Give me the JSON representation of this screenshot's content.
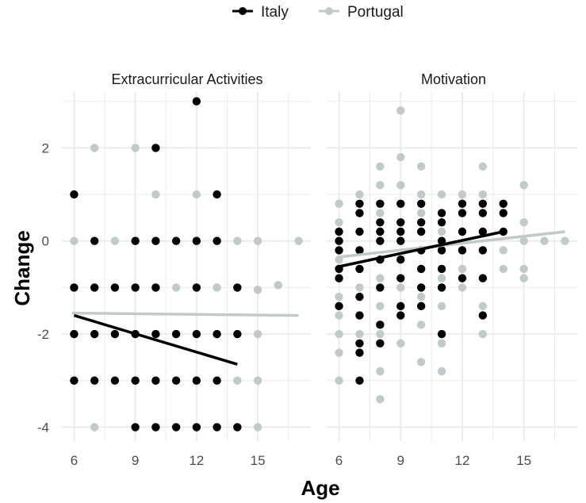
{
  "colors": {
    "italy": "#000000",
    "portugal": "#c2c9c9",
    "grid": "#ebebeb"
  },
  "chart_data": {
    "type": "scatter",
    "xlabel": "Age",
    "ylabel": "Change",
    "xlim": [
      5.4,
      17.6
    ],
    "ylim": [
      -4.3,
      3.2
    ],
    "xticks": [
      6,
      9,
      12,
      15
    ],
    "yticks": [
      -4,
      -2,
      0,
      2
    ],
    "legend": {
      "position": "top",
      "entries": [
        "Italy",
        "Portugal"
      ]
    },
    "panels": [
      {
        "title": "Extracurricular Activities",
        "series": [
          {
            "name": "Portugal",
            "points": [
              [
                6,
                0
              ],
              [
                6,
                -1
              ],
              [
                6,
                -2
              ],
              [
                6,
                -3
              ],
              [
                7,
                2
              ],
              [
                7,
                -1
              ],
              [
                7,
                -2
              ],
              [
                7,
                -3
              ],
              [
                7,
                -4
              ],
              [
                8,
                0
              ],
              [
                8,
                -1
              ],
              [
                8,
                -2
              ],
              [
                8,
                -3
              ],
              [
                9,
                2
              ],
              [
                9,
                0
              ],
              [
                9,
                -1
              ],
              [
                9,
                -2
              ],
              [
                9,
                -3
              ],
              [
                10,
                1
              ],
              [
                10,
                0
              ],
              [
                10,
                -1
              ],
              [
                10,
                -2
              ],
              [
                10,
                -3
              ],
              [
                10,
                -4
              ],
              [
                11,
                0
              ],
              [
                11,
                -1
              ],
              [
                11,
                -2
              ],
              [
                11,
                -3
              ],
              [
                12,
                1
              ],
              [
                12,
                0
              ],
              [
                12,
                -1
              ],
              [
                12,
                -2
              ],
              [
                12,
                -3
              ],
              [
                12,
                -4
              ],
              [
                13,
                0
              ],
              [
                13,
                -1
              ],
              [
                13,
                -2
              ],
              [
                13,
                -3
              ],
              [
                14,
                0
              ],
              [
                14,
                -1
              ],
              [
                14,
                -3
              ],
              [
                14,
                -4
              ],
              [
                15,
                0
              ],
              [
                15,
                -1.05
              ],
              [
                15,
                -2
              ],
              [
                15,
                -3
              ],
              [
                15,
                -4
              ],
              [
                16,
                -0.95
              ],
              [
                17,
                0
              ]
            ],
            "fit": {
              "x": [
                5.9,
                17
              ],
              "y": [
                -1.55,
                -1.6
              ]
            }
          },
          {
            "name": "Italy",
            "points": [
              [
                6,
                1
              ],
              [
                6,
                -1
              ],
              [
                6,
                -2
              ],
              [
                6,
                -3
              ],
              [
                7,
                0
              ],
              [
                7,
                -1
              ],
              [
                7,
                -2
              ],
              [
                7,
                -3
              ],
              [
                8,
                -1
              ],
              [
                8,
                -2
              ],
              [
                8,
                -3
              ],
              [
                9,
                0
              ],
              [
                9,
                -1
              ],
              [
                9,
                -2
              ],
              [
                9,
                -3
              ],
              [
                9,
                -4
              ],
              [
                10,
                2
              ],
              [
                10,
                0
              ],
              [
                10,
                -1
              ],
              [
                10,
                -2
              ],
              [
                10,
                -3
              ],
              [
                10,
                -4
              ],
              [
                11,
                0
              ],
              [
                11,
                -2
              ],
              [
                11,
                -3
              ],
              [
                11,
                -4
              ],
              [
                12,
                3
              ],
              [
                12,
                0
              ],
              [
                12,
                -1
              ],
              [
                12,
                -2
              ],
              [
                12,
                -3
              ],
              [
                12,
                -4
              ],
              [
                13,
                1
              ],
              [
                13,
                0
              ],
              [
                13,
                -2
              ],
              [
                13,
                -3
              ],
              [
                13,
                -4
              ],
              [
                14,
                -1
              ],
              [
                14,
                -2
              ],
              [
                14,
                -4
              ]
            ],
            "fit": {
              "x": [
                6,
                14
              ],
              "y": [
                -1.6,
                -2.65
              ]
            }
          }
        ]
      },
      {
        "title": "Motivation",
        "series": [
          {
            "name": "Portugal",
            "points": [
              [
                6,
                0.8
              ],
              [
                6,
                0.4
              ],
              [
                6,
                0.2
              ],
              [
                6,
                0
              ],
              [
                6,
                -0.4
              ],
              [
                6,
                -0.8
              ],
              [
                6,
                -1.2
              ],
              [
                6,
                -1.6
              ],
              [
                6,
                -2
              ],
              [
                6,
                -2.4
              ],
              [
                6,
                -3
              ],
              [
                7,
                1
              ],
              [
                7,
                0.6
              ],
              [
                7,
                0.2
              ],
              [
                7,
                -0.2
              ],
              [
                7,
                -0.6
              ],
              [
                7,
                -1
              ],
              [
                7,
                -1.6
              ],
              [
                7,
                -2
              ],
              [
                8,
                1.6
              ],
              [
                8,
                1.2
              ],
              [
                8,
                0.6
              ],
              [
                8,
                0.2
              ],
              [
                8,
                -0.4
              ],
              [
                8,
                -0.8
              ],
              [
                8,
                -1.4
              ],
              [
                8,
                -2
              ],
              [
                8,
                -2.8
              ],
              [
                8,
                -3.4
              ],
              [
                9,
                2.8
              ],
              [
                9,
                1.8
              ],
              [
                9,
                1.2
              ],
              [
                9,
                0.8
              ],
              [
                9,
                0.4
              ],
              [
                9,
                0
              ],
              [
                9,
                -0.4
              ],
              [
                9,
                -1
              ],
              [
                9,
                -1.6
              ],
              [
                9,
                -2.2
              ],
              [
                10,
                1.6
              ],
              [
                10,
                1
              ],
              [
                10,
                0.6
              ],
              [
                10,
                0.2
              ],
              [
                10,
                -0.2
              ],
              [
                10,
                -0.6
              ],
              [
                10,
                -1.2
              ],
              [
                10,
                -1.8
              ],
              [
                10,
                -2.6
              ],
              [
                11,
                1
              ],
              [
                11,
                0.6
              ],
              [
                11,
                0.2
              ],
              [
                11,
                -0.2
              ],
              [
                11,
                -0.8
              ],
              [
                11,
                -1.4
              ],
              [
                11,
                -2.2
              ],
              [
                11,
                -2.8
              ],
              [
                12,
                1
              ],
              [
                12,
                0.6
              ],
              [
                12,
                0.2
              ],
              [
                12,
                -0.2
              ],
              [
                12,
                -0.6
              ],
              [
                12,
                -1
              ],
              [
                13,
                1.6
              ],
              [
                13,
                1
              ],
              [
                13,
                0.6
              ],
              [
                13,
                0.2
              ],
              [
                13,
                -0.2
              ],
              [
                13,
                -0.8
              ],
              [
                13,
                -1.4
              ],
              [
                13,
                -2
              ],
              [
                14,
                0.6
              ],
              [
                14,
                0.2
              ],
              [
                14,
                -0.2
              ],
              [
                14,
                -0.6
              ],
              [
                15,
                1.2
              ],
              [
                15,
                0.4
              ],
              [
                15,
                0
              ],
              [
                15,
                -0.6
              ],
              [
                15,
                -0.8
              ],
              [
                16,
                0
              ],
              [
                17,
                0
              ]
            ],
            "fit": {
              "x": [
                5.9,
                17
              ],
              "y": [
                -0.35,
                0.2
              ]
            }
          },
          {
            "name": "Italy",
            "points": [
              [
                6,
                0.2
              ],
              [
                6,
                0
              ],
              [
                6,
                -0.2
              ],
              [
                6,
                -0.6
              ],
              [
                6,
                -0.8
              ],
              [
                6,
                -1.4
              ],
              [
                7,
                0.8
              ],
              [
                7,
                0.6
              ],
              [
                7,
                0.2
              ],
              [
                7,
                -0.2
              ],
              [
                7,
                -0.6
              ],
              [
                7,
                -1.2
              ],
              [
                7,
                -1.6
              ],
              [
                7,
                -2.2
              ],
              [
                7,
                -2.4
              ],
              [
                7,
                -3
              ],
              [
                8,
                0.8
              ],
              [
                8,
                0.4
              ],
              [
                8,
                0.2
              ],
              [
                8,
                0
              ],
              [
                8,
                -0.4
              ],
              [
                8,
                -1
              ],
              [
                8,
                -1.8
              ],
              [
                8,
                -2.2
              ],
              [
                9,
                0.8
              ],
              [
                9,
                0.4
              ],
              [
                9,
                0.2
              ],
              [
                9,
                0
              ],
              [
                9,
                -0.4
              ],
              [
                9,
                -0.8
              ],
              [
                9,
                -1.4
              ],
              [
                9,
                -1.6
              ],
              [
                10,
                0.8
              ],
              [
                10,
                0.4
              ],
              [
                10,
                0.2
              ],
              [
                10,
                -0.2
              ],
              [
                10,
                -0.6
              ],
              [
                10,
                -1
              ],
              [
                10,
                -1.4
              ],
              [
                11,
                0.6
              ],
              [
                11,
                0.4
              ],
              [
                11,
                0
              ],
              [
                11,
                -0.2
              ],
              [
                11,
                -0.6
              ],
              [
                11,
                -1
              ],
              [
                11,
                -2
              ],
              [
                12,
                0.8
              ],
              [
                12,
                0.6
              ],
              [
                12,
                0.2
              ],
              [
                12,
                -0.2
              ],
              [
                12,
                -0.8
              ],
              [
                13,
                0.8
              ],
              [
                13,
                0.6
              ],
              [
                13,
                0.2
              ],
              [
                13,
                -0.2
              ],
              [
                13,
                -0.8
              ],
              [
                13,
                -1.6
              ],
              [
                14,
                0.8
              ],
              [
                14,
                0.6
              ],
              [
                14,
                0.2
              ]
            ],
            "fit": {
              "x": [
                6,
                14
              ],
              "y": [
                -0.55,
                0.2
              ]
            }
          }
        ]
      }
    ]
  }
}
